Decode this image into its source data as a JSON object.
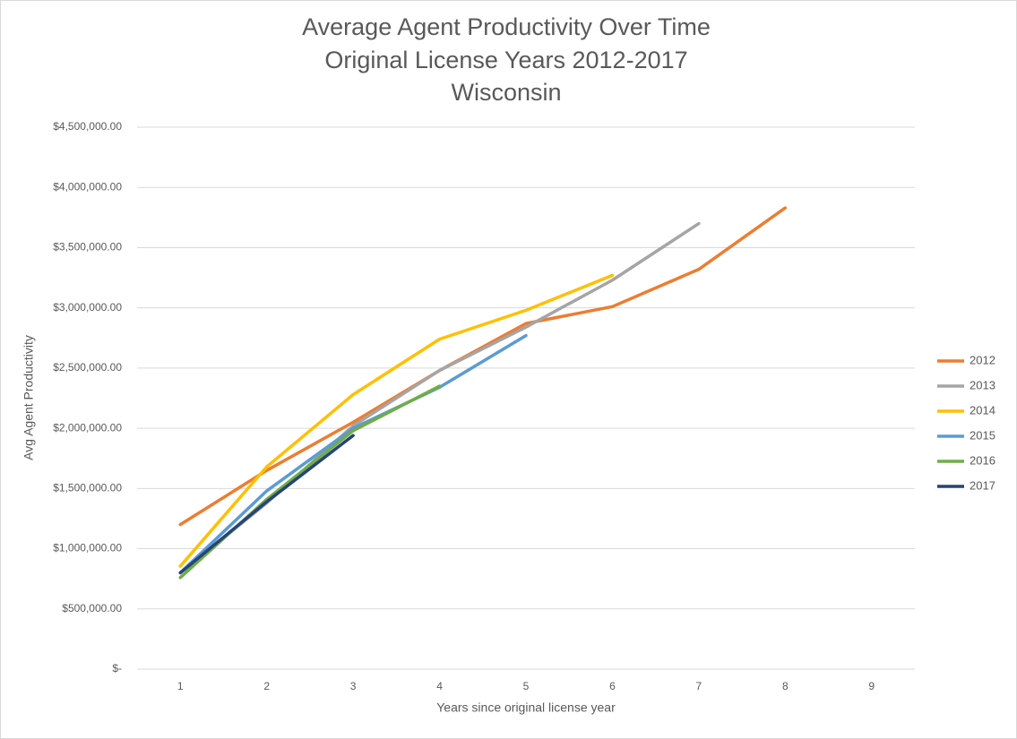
{
  "chart_data": {
    "type": "line",
    "title": [
      "Average Agent Productivity Over Time",
      "Original License Years 2012-2017",
      "Wisconsin"
    ],
    "x_label": "Years since original license year",
    "y_label": "Avg Agent Productivity",
    "x": [
      1,
      2,
      3,
      4,
      5,
      6,
      7,
      8,
      9
    ],
    "xlim": [
      0.5,
      9.5
    ],
    "xticks": [
      1,
      2,
      3,
      4,
      5,
      6,
      7,
      8,
      9
    ],
    "ylim": [
      0,
      4500000
    ],
    "yticks": [
      {
        "value": 0,
        "label": "$-"
      },
      {
        "value": 500000,
        "label": "$500,000.00"
      },
      {
        "value": 1000000,
        "label": "$1,000,000.00"
      },
      {
        "value": 1500000,
        "label": "$1,500,000.00"
      },
      {
        "value": 2000000,
        "label": "$2,000,000.00"
      },
      {
        "value": 2500000,
        "label": "$2,500,000.00"
      },
      {
        "value": 3000000,
        "label": "$3,000,000.00"
      },
      {
        "value": 3500000,
        "label": "$3,500,000.00"
      },
      {
        "value": 4000000,
        "label": "$4,000,000.00"
      },
      {
        "value": 4500000,
        "label": "$4,500,000.00"
      }
    ],
    "grid": true,
    "legend": "right",
    "series": [
      {
        "name": "2012",
        "color": "#ed7d31",
        "values": [
          1200000,
          1650000,
          2050000,
          2480000,
          2870000,
          3010000,
          3320000,
          3830000,
          null
        ]
      },
      {
        "name": "2013",
        "color": "#a5a5a5",
        "values": [
          800000,
          1380000,
          2020000,
          2480000,
          2840000,
          3230000,
          3700000,
          null,
          null
        ]
      },
      {
        "name": "2014",
        "color": "#ffc000",
        "values": [
          855000,
          1680000,
          2280000,
          2740000,
          2980000,
          3270000,
          null,
          null,
          null
        ]
      },
      {
        "name": "2015",
        "color": "#5b9bd5",
        "values": [
          800000,
          1480000,
          2000000,
          2340000,
          2770000,
          null,
          null,
          null,
          null
        ]
      },
      {
        "name": "2016",
        "color": "#70ad47",
        "values": [
          760000,
          1410000,
          1980000,
          2350000,
          null,
          null,
          null,
          null,
          null
        ]
      },
      {
        "name": "2017",
        "color": "#264478",
        "values": [
          800000,
          1390000,
          1940000,
          null,
          null,
          null,
          null,
          null,
          null
        ]
      }
    ]
  }
}
